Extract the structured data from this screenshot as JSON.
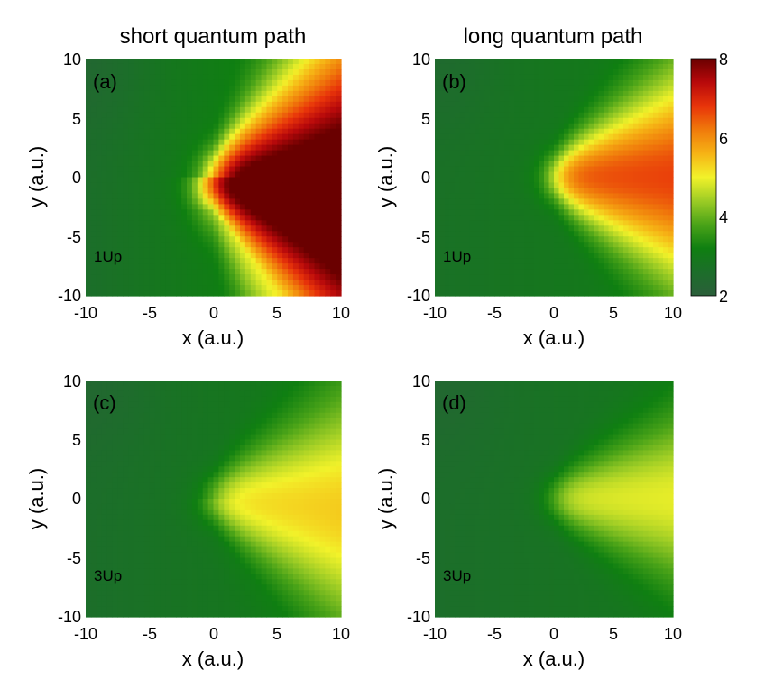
{
  "chart_data": {
    "type": "heatmap",
    "colorbar": {
      "min": 2,
      "max": 8,
      "ticks": [
        2,
        4,
        6,
        8
      ]
    },
    "colormap": [
      "#2b5e3a",
      "#1c6e2a",
      "#0f7f11",
      "#4aa318",
      "#9ccc25",
      "#f2f22a",
      "#f6b315",
      "#f07a0b",
      "#e8340a",
      "#b8090b",
      "#6a0000"
    ],
    "panels": [
      {
        "label": "(a)",
        "title": "short quantum path",
        "note": "1Up",
        "xlabel": "x (a.u.)",
        "ylabel": "y (a.u.)",
        "xlim": [
          -10,
          10
        ],
        "ylim": [
          -10,
          10
        ],
        "xticks": [
          -10,
          -5,
          0,
          5,
          10
        ],
        "yticks": [
          10,
          5,
          0,
          -5,
          -10
        ],
        "field": {
          "base": 2.6,
          "amp": 5.6,
          "decay": 0.26,
          "ridge_y": -0.3,
          "ridge_tilt": -0.18,
          "width0": 1.2,
          "width_slope": 0.75,
          "curl": 0.55,
          "backfill": 0.25
        }
      },
      {
        "label": "(b)",
        "title": "long quantum path",
        "note": "1Up",
        "xlabel": "x (a.u.)",
        "ylabel": "y (a.u.)",
        "xlim": [
          -10,
          10
        ],
        "ylim": [
          -10,
          10
        ],
        "xticks": [
          -10,
          -5,
          0,
          5,
          10
        ],
        "yticks": [
          10,
          5,
          0,
          -5,
          -10
        ],
        "field": {
          "base": 2.7,
          "amp": 3.6,
          "decay": 0.32,
          "ridge_y": 0.0,
          "ridge_tilt": 0.0,
          "width0": 0.9,
          "width_slope": 0.45,
          "curl": 0.0,
          "backfill": 0.1
        }
      },
      {
        "label": "(c)",
        "title": "",
        "note": "3Up",
        "xlabel": "x (a.u.)",
        "ylabel": "y (a.u.)",
        "xlim": [
          -10,
          10
        ],
        "ylim": [
          -10,
          10
        ],
        "xticks": [
          -10,
          -5,
          0,
          5,
          10
        ],
        "yticks": [
          10,
          5,
          0,
          -5,
          -10
        ],
        "field": {
          "base": 2.6,
          "amp": 2.3,
          "decay": 0.3,
          "ridge_y": 0.0,
          "ridge_tilt": -0.1,
          "width0": 0.9,
          "width_slope": 0.5,
          "curl": 0.25,
          "backfill": 0.12
        }
      },
      {
        "label": "(d)",
        "title": "",
        "note": "3Up",
        "xlabel": "x (a.u.)",
        "ylabel": "y (a.u.)",
        "xlim": [
          -10,
          10
        ],
        "ylim": [
          -10,
          10
        ],
        "xticks": [
          -10,
          -5,
          0,
          5,
          10
        ],
        "yticks": [
          10,
          5,
          0,
          -5,
          -10
        ],
        "field": {
          "base": 2.6,
          "amp": 2.0,
          "decay": 0.34,
          "ridge_y": 0.0,
          "ridge_tilt": 0.0,
          "width0": 0.8,
          "width_slope": 0.35,
          "curl": 0.0,
          "backfill": 0.08
        }
      }
    ]
  }
}
